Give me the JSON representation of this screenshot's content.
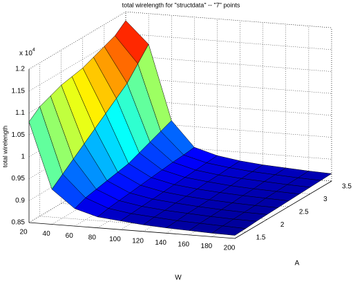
{
  "chart_data": {
    "type": "surface",
    "title": "total wirelength for \"structdata\" -- \"7\" points",
    "xlabel": "W",
    "ylabel": "A",
    "zlabel": "total wirelength",
    "z_multiplier_base": "x 10",
    "z_multiplier_power": "4",
    "x": [
      20,
      40,
      60,
      80,
      100,
      120,
      140,
      160,
      180,
      200
    ],
    "y": [
      1.25,
      1.5,
      1.75,
      2,
      2.25,
      2.5,
      2.75,
      3,
      3.25,
      3.5
    ],
    "z": [
      [
        1.08,
        0.93,
        0.89,
        0.875,
        0.87,
        0.865,
        0.862,
        0.86,
        0.858,
        0.857
      ],
      [
        1.1,
        0.95,
        0.9,
        0.88,
        0.872,
        0.868,
        0.864,
        0.862,
        0.86,
        0.858
      ],
      [
        1.11,
        0.97,
        0.905,
        0.883,
        0.874,
        0.869,
        0.866,
        0.863,
        0.861,
        0.86
      ],
      [
        1.12,
        0.99,
        0.91,
        0.886,
        0.876,
        0.871,
        0.867,
        0.864,
        0.862,
        0.861
      ],
      [
        1.125,
        1.01,
        0.915,
        0.889,
        0.878,
        0.872,
        0.868,
        0.865,
        0.863,
        0.862
      ],
      [
        1.13,
        1.03,
        0.92,
        0.892,
        0.88,
        0.874,
        0.87,
        0.867,
        0.865,
        0.863
      ],
      [
        1.14,
        1.05,
        0.93,
        0.895,
        0.882,
        0.876,
        0.871,
        0.868,
        0.866,
        0.864
      ],
      [
        1.15,
        1.07,
        0.94,
        0.898,
        0.884,
        0.877,
        0.873,
        0.87,
        0.867,
        0.865
      ],
      [
        1.16,
        1.1,
        0.95,
        0.9,
        0.886,
        0.879,
        0.874,
        0.871,
        0.868,
        0.866
      ],
      [
        1.18,
        1.13,
        0.96,
        0.903,
        0.888,
        0.88,
        0.875,
        0.872,
        0.869,
        0.867
      ]
    ],
    "xlim": [
      20,
      200
    ],
    "ylim": [
      1.25,
      3.5
    ],
    "zlim": [
      0.85,
      1.2
    ],
    "xticks": [
      20,
      40,
      60,
      80,
      100,
      120,
      140,
      160,
      180,
      200
    ],
    "yticks": [
      1.5,
      2,
      2.5,
      3,
      3.5
    ],
    "zticks": [
      0.85,
      0.9,
      0.95,
      1,
      1.05,
      1.1,
      1.15,
      1.2
    ],
    "colormap": "jet",
    "grid": true
  }
}
